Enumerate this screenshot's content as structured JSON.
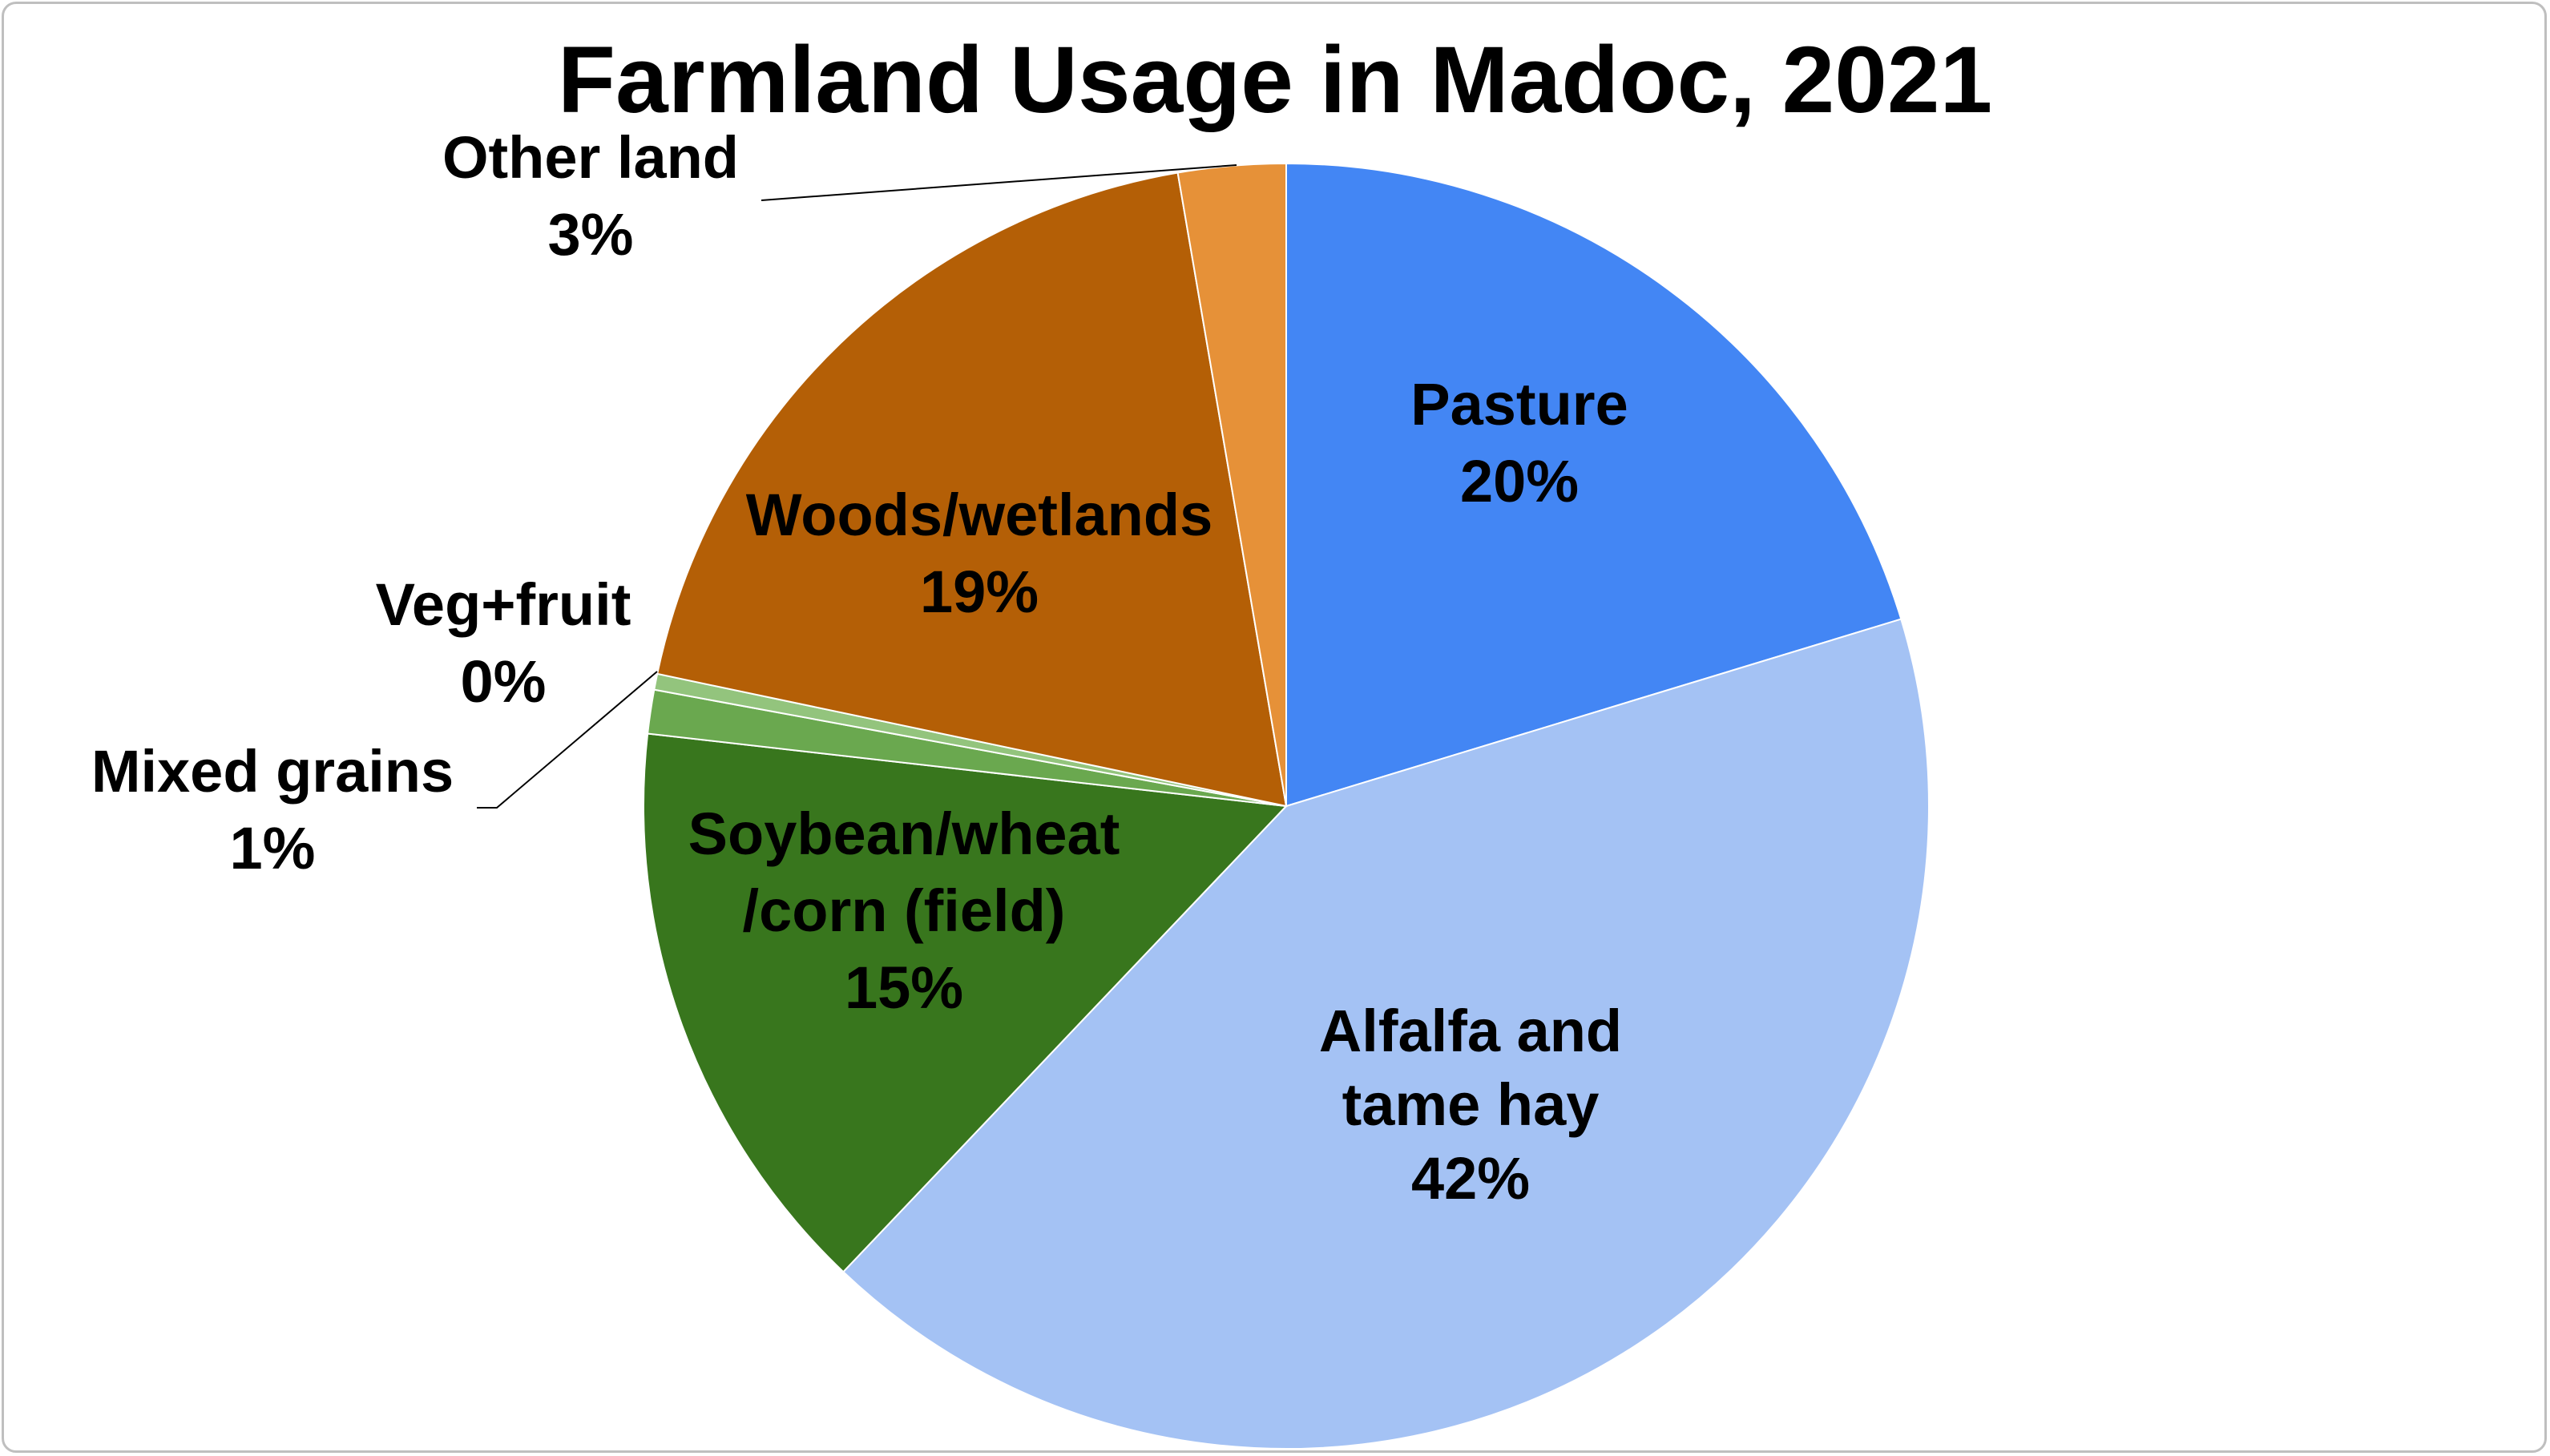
{
  "chart_data": {
    "type": "pie",
    "title": "Farmland Usage in Madoc, 2021",
    "slices": [
      {
        "name": "Pasture",
        "value": 20,
        "label_lines": [
          "Pasture",
          "20%"
        ],
        "color": "#4386F4"
      },
      {
        "name": "Alfalfa and tame hay",
        "value": 42,
        "label_lines": [
          "Alfalfa and",
          "tame hay",
          "42%"
        ],
        "color": "#A4C2F4"
      },
      {
        "name": "Soybean/wheat/corn (field)",
        "value": 15,
        "label_lines": [
          "Soybean/wheat",
          "/corn (field)",
          "15%"
        ],
        "color": "#38761D"
      },
      {
        "name": "Mixed grains",
        "value": 1,
        "label_lines": [
          "Mixed grains",
          "1%"
        ],
        "color": "#6AA84F"
      },
      {
        "name": "Veg+fruit",
        "value": 0,
        "label_lines": [
          "Veg+fruit",
          "0%"
        ],
        "color": "#93C47D"
      },
      {
        "name": "Woods/wetlands",
        "value": 19,
        "label_lines": [
          "Woods/wetlands",
          "19%"
        ],
        "color": "#B45F06"
      },
      {
        "name": "Other land",
        "value": 3,
        "label_lines": [
          "Other land",
          "3%"
        ],
        "color": "#E69138"
      }
    ],
    "start_angle": "12 o'clock",
    "direction": "clockwise",
    "legend": "none"
  }
}
